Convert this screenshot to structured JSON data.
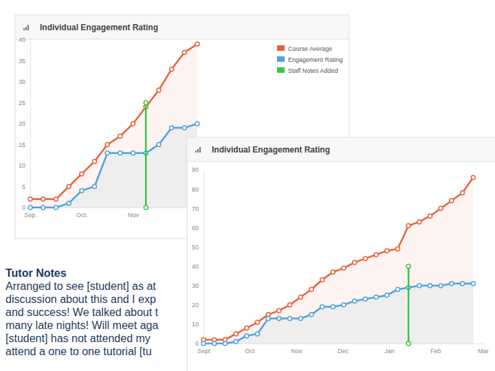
{
  "chart_data": [
    {
      "type": "line",
      "title": "Individual Engagement Rating",
      "x": [
        0,
        1,
        2,
        3,
        4,
        5,
        6,
        7,
        8,
        9,
        10,
        11,
        12,
        13
      ],
      "xlim": [
        0,
        13
      ],
      "xticks": [
        {
          "value": 0,
          "label": "Sep."
        },
        {
          "value": 4,
          "label": "Oct."
        },
        {
          "value": 8,
          "label": "Nov"
        }
      ],
      "ylim": [
        0,
        40
      ],
      "yticks": [
        0,
        5,
        10,
        15,
        20,
        25,
        30,
        35,
        40
      ],
      "legend": "top-right",
      "series": [
        {
          "name": "Course Average",
          "color": "#e8603c",
          "marker": "circle",
          "values": [
            2,
            2,
            2,
            5,
            8,
            11,
            15,
            17,
            20,
            24,
            28,
            33,
            37,
            39
          ]
        },
        {
          "name": "Engagement Rating",
          "color": "#4ba3dd",
          "marker": "circle",
          "values": [
            0,
            0,
            0,
            1,
            4,
            5,
            13,
            13,
            13,
            13,
            15,
            19,
            19,
            20
          ]
        },
        {
          "name": "Staff Notes Added",
          "type": "stem",
          "color": "#2ecc40",
          "marker": "circle",
          "values": [
            null,
            null,
            null,
            null,
            null,
            null,
            null,
            null,
            null,
            25,
            null,
            null,
            null,
            null
          ]
        }
      ]
    },
    {
      "type": "line",
      "title": "Individual Engagement Rating",
      "x": [
        0,
        1,
        2,
        3,
        4,
        5,
        6,
        7,
        8,
        9,
        10,
        11,
        12,
        13,
        14,
        15,
        16,
        17,
        18,
        19,
        20,
        21,
        22,
        23,
        24,
        25
      ],
      "xlim": [
        0,
        26
      ],
      "xticks": [
        {
          "value": 0,
          "label": "Sept"
        },
        {
          "value": 4.25,
          "label": "Oct"
        },
        {
          "value": 8.6,
          "label": "Nov"
        },
        {
          "value": 12.9,
          "label": "Dec"
        },
        {
          "value": 17.2,
          "label": "Jan"
        },
        {
          "value": 21.5,
          "label": "Feb"
        },
        {
          "value": 25.9,
          "label": "Mar"
        }
      ],
      "ylim": [
        0,
        90
      ],
      "yticks": [
        0,
        10,
        20,
        30,
        40,
        50,
        60,
        70,
        80,
        90
      ],
      "series": [
        {
          "color": "#e8603c",
          "marker": "circle",
          "values": [
            2,
            2,
            2,
            5,
            8,
            11,
            15,
            17,
            20,
            24,
            28,
            33,
            37,
            39,
            42,
            44,
            46,
            48,
            49,
            61,
            63,
            66,
            70,
            74,
            78,
            86
          ]
        },
        {
          "color": "#4ba3dd",
          "marker": "circle",
          "values": [
            0,
            0,
            0,
            1,
            4,
            5,
            13,
            13,
            13,
            13,
            15,
            19,
            19,
            20,
            22,
            23,
            24,
            25,
            28,
            29,
            30,
            30,
            30,
            31,
            31,
            31
          ]
        },
        {
          "type": "stem",
          "color": "#2ecc40",
          "marker": "circle",
          "values": [
            null,
            null,
            null,
            null,
            null,
            null,
            null,
            null,
            null,
            null,
            null,
            null,
            null,
            null,
            null,
            null,
            null,
            null,
            null,
            40,
            null,
            null,
            null,
            null,
            null,
            null
          ]
        }
      ]
    }
  ],
  "notes": {
    "title": "Tutor Notes",
    "lines": [
      "Arranged to see [student] as at",
      "discussion about this and I exp",
      "and success! We talked about t",
      "many late nights! Will meet aga",
      "[student] has not attended my",
      "attend a one to one tutorial [tu"
    ]
  }
}
